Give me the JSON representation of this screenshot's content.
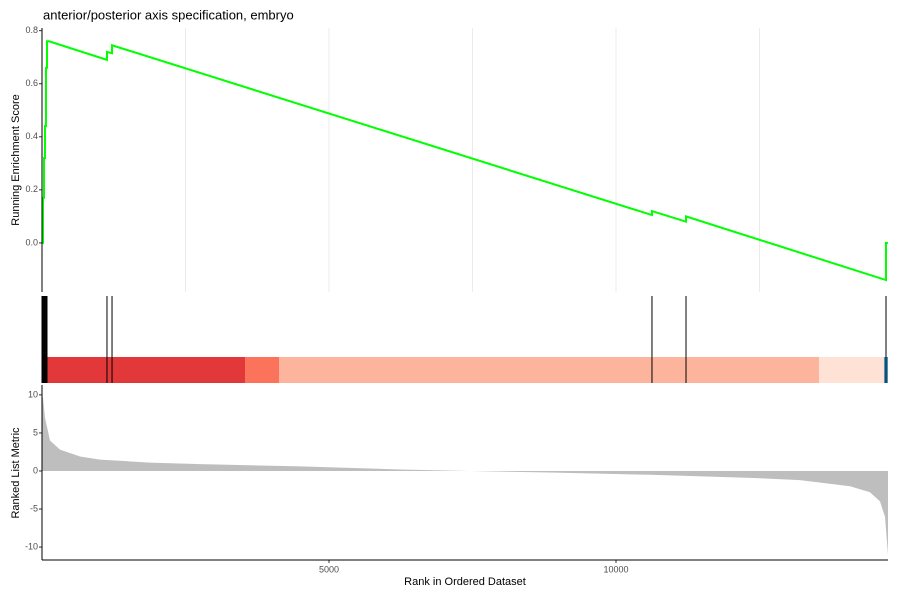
{
  "chart_data": [
    {
      "type": "line",
      "title": "anterior/posterior axis specification, embryo",
      "ylabel": "Running Enrichment Score",
      "x": [
        0,
        17,
        17,
        35,
        35,
        52,
        52,
        70,
        70,
        87,
        87,
        122,
        1132,
        1132,
        1220,
        1220,
        10627,
        10627,
        11220,
        11220,
        14704,
        14704,
        14739
      ],
      "series": [
        {
          "color": "#00ff00",
          "values": [
            0,
            0,
            0.17,
            0.17,
            0.32,
            0.32,
            0.44,
            0.44,
            0.66,
            0.66,
            0.76,
            0.76,
            0.69,
            0.72,
            0.715,
            0.745,
            0.105,
            0.12,
            0.08,
            0.1,
            -0.14,
            0.0,
            0.0
          ]
        }
      ],
      "xlim": [
        0,
        14739
      ],
      "ylim": [
        -0.185,
        0.81
      ],
      "yticks": [
        {
          "value": 0,
          "label": "0.0"
        },
        0.2,
        0.4,
        0.6,
        0.8
      ],
      "xgrid": [
        2500,
        5000,
        7500,
        10000,
        12500
      ]
    },
    {
      "type": "barcode",
      "hits": [
        17,
        35,
        52,
        70,
        87,
        1132,
        1220,
        10627,
        11220,
        14704
      ],
      "bands": [
        {
          "start": 0,
          "end": 3537,
          "color": "#e2383a"
        },
        {
          "start": 3537,
          "end": 4129,
          "color": "#fb735a"
        },
        {
          "start": 4129,
          "end": 13537,
          "color": "#fcb49c"
        },
        {
          "start": 13537,
          "end": 14669,
          "color": "#fee2d6"
        },
        {
          "start": 14669,
          "end": 14739,
          "color": "#4393c3"
        }
      ],
      "xlim": [
        0,
        14739
      ]
    },
    {
      "type": "area",
      "xlabel": "Rank in Ordered Dataset",
      "ylabel": "Ranked List Metric",
      "color": "#bebebe",
      "x": [
        0,
        17,
        52,
        139,
        314,
        662,
        1010,
        1882,
        2753,
        4495,
        6237,
        7456,
        8850,
        10592,
        12334,
        13206,
        14077,
        14425,
        14599,
        14686,
        14739
      ],
      "values": [
        10,
        9.6,
        7,
        4,
        2.8,
        1.9,
        1.5,
        1.1,
        0.9,
        0.6,
        0.2,
        0,
        -0.2,
        -0.5,
        -0.9,
        -1.2,
        -2,
        -2.8,
        -4,
        -6,
        -11
      ],
      "xlim": [
        0,
        14739
      ],
      "ylim": [
        -11.7,
        11.3
      ],
      "yticks": [
        -10,
        -5,
        0,
        5,
        10
      ],
      "xticks": [
        5000,
        10000
      ]
    }
  ]
}
